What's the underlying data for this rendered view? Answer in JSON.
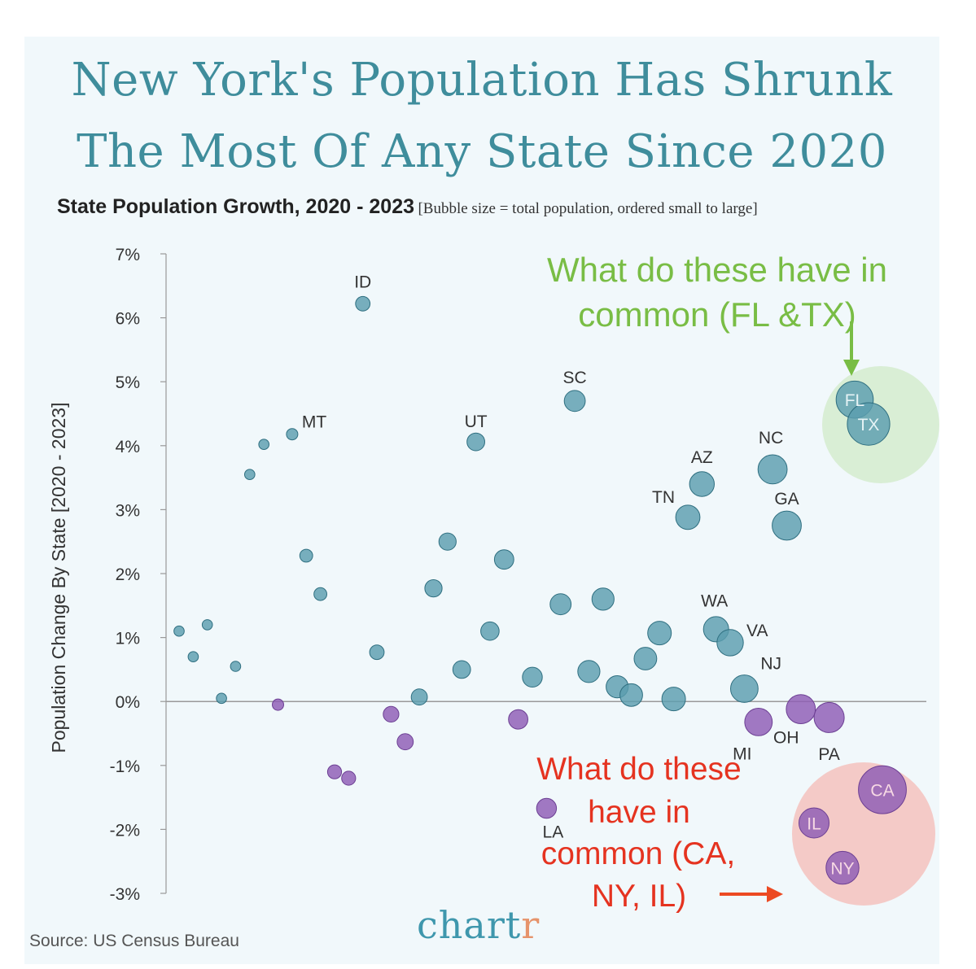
{
  "title_lines": [
    "New York's Population Has Shrunk",
    "The Most Of Any State Since 2020"
  ],
  "subtitle": "State Population Growth, 2020 - 2023",
  "subtitle_note": "[Bubble size = total population, ordered small to large]",
  "source": "Source: US Census Bureau",
  "brand_main": "chart",
  "brand_accent": "r",
  "colors": {
    "positive": "#5b9eaf",
    "negative": "#8e5cb5",
    "green_annotation": "#79bd45",
    "red_annotation": "#e53320",
    "green_circle": "#d6ecd0",
    "red_circle": "#f3c7c4"
  },
  "annotations": {
    "green_lines": [
      "What do these have in",
      "common (FL &TX)"
    ],
    "red_lines": [
      "What do these",
      "have in",
      "common (CA,",
      "NY, IL)"
    ]
  },
  "chart_data": {
    "type": "scatter",
    "title": "State Population Growth, 2020 - 2023",
    "ylabel": "Population Change By State [2020 - 2023]",
    "xlabel": "",
    "x_meaning": "states ordered by total population, small to large",
    "bubble_size": "total population",
    "ylim": [
      -3,
      7
    ],
    "yticks": [
      "7%",
      "6%",
      "5%",
      "4%",
      "3%",
      "2%",
      "1%",
      "0%",
      "-1%",
      "-2%",
      "-3%"
    ],
    "grid": false,
    "zero_line": true,
    "points": [
      {
        "rank": 1,
        "label": "",
        "y": 1.1,
        "size": 1
      },
      {
        "rank": 2,
        "label": "",
        "y": 0.7,
        "size": 1
      },
      {
        "rank": 3,
        "label": "",
        "y": 1.2,
        "size": 1
      },
      {
        "rank": 4,
        "label": "",
        "y": 0.05,
        "size": 1
      },
      {
        "rank": 5,
        "label": "",
        "y": 0.55,
        "size": 1
      },
      {
        "rank": 6,
        "label": "",
        "y": 3.55,
        "size": 1
      },
      {
        "rank": 7,
        "label": "",
        "y": 4.02,
        "size": 1
      },
      {
        "rank": 8,
        "label": "",
        "y": -0.05,
        "size": 1.2
      },
      {
        "rank": 9,
        "label": "MT",
        "y": 4.18,
        "size": 1.2
      },
      {
        "rank": 10,
        "label": "",
        "y": 2.28,
        "size": 1.5
      },
      {
        "rank": 11,
        "label": "",
        "y": 1.68,
        "size": 1.5
      },
      {
        "rank": 12,
        "label": "",
        "y": -1.1,
        "size": 1.7
      },
      {
        "rank": 13,
        "label": "",
        "y": -1.2,
        "size": 1.7
      },
      {
        "rank": 14,
        "label": "ID",
        "y": 6.22,
        "size": 1.8
      },
      {
        "rank": 15,
        "label": "",
        "y": 0.77,
        "size": 1.8
      },
      {
        "rank": 16,
        "label": "",
        "y": -0.2,
        "size": 2
      },
      {
        "rank": 17,
        "label": "",
        "y": -0.63,
        "size": 2.1
      },
      {
        "rank": 18,
        "label": "",
        "y": 0.07,
        "size": 2.1
      },
      {
        "rank": 19,
        "label": "",
        "y": 1.77,
        "size": 2.3
      },
      {
        "rank": 20,
        "label": "",
        "y": 2.5,
        "size": 2.3
      },
      {
        "rank": 21,
        "label": "",
        "y": 0.5,
        "size": 2.4
      },
      {
        "rank": 22,
        "label": "UT",
        "y": 4.06,
        "size": 2.4
      },
      {
        "rank": 23,
        "label": "",
        "y": 1.1,
        "size": 2.5
      },
      {
        "rank": 24,
        "label": "",
        "y": 2.22,
        "size": 2.7
      },
      {
        "rank": 25,
        "label": "",
        "y": -0.28,
        "size": 2.7
      },
      {
        "rank": 26,
        "label": "",
        "y": 0.38,
        "size": 2.8
      },
      {
        "rank": 27,
        "label": "LA",
        "y": -1.67,
        "size": 2.8
      },
      {
        "rank": 28,
        "label": "",
        "y": 1.52,
        "size": 3
      },
      {
        "rank": 29,
        "label": "SC",
        "y": 4.7,
        "size": 3
      },
      {
        "rank": 30,
        "label": "",
        "y": 0.47,
        "size": 3.2
      },
      {
        "rank": 31,
        "label": "",
        "y": 1.6,
        "size": 3.2
      },
      {
        "rank": 32,
        "label": "",
        "y": 0.23,
        "size": 3.2
      },
      {
        "rank": 33,
        "label": "",
        "y": 0.1,
        "size": 3.3
      },
      {
        "rank": 34,
        "label": "",
        "y": 0.67,
        "size": 3.3
      },
      {
        "rank": 35,
        "label": "",
        "y": 1.07,
        "size": 3.5
      },
      {
        "rank": 36,
        "label": "",
        "y": 0.04,
        "size": 3.5
      },
      {
        "rank": 37,
        "label": "TN",
        "y": 2.88,
        "size": 3.6
      },
      {
        "rank": 38,
        "label": "AZ",
        "y": 3.4,
        "size": 3.7
      },
      {
        "rank": 39,
        "label": "WA",
        "y": 1.13,
        "size": 3.8
      },
      {
        "rank": 40,
        "label": "VA",
        "y": 0.92,
        "size": 4
      },
      {
        "rank": 41,
        "label": "NJ",
        "y": 0.2,
        "size": 4.2
      },
      {
        "rank": 42,
        "label": "MI",
        "y": -0.32,
        "size": 4.2
      },
      {
        "rank": 43,
        "label": "NC",
        "y": 3.63,
        "size": 4.5
      },
      {
        "rank": 44,
        "label": "GA",
        "y": 2.75,
        "size": 4.5
      },
      {
        "rank": 45,
        "label": "OH",
        "y": -0.12,
        "size": 4.5
      },
      {
        "rank": 46,
        "label": "IL",
        "y": -1.9,
        "size": 4.7
      },
      {
        "rank": 47,
        "label": "PA",
        "y": -0.25,
        "size": 4.7
      },
      {
        "rank": 48,
        "label": "NY",
        "y": -2.6,
        "size": 5.2
      },
      {
        "rank": 49,
        "label": "FL",
        "y": 4.72,
        "size": 6
      },
      {
        "rank": 50,
        "label": "TX",
        "y": 4.34,
        "size": 7
      },
      {
        "rank": 51,
        "label": "CA",
        "y": -1.38,
        "size": 8
      }
    ]
  }
}
